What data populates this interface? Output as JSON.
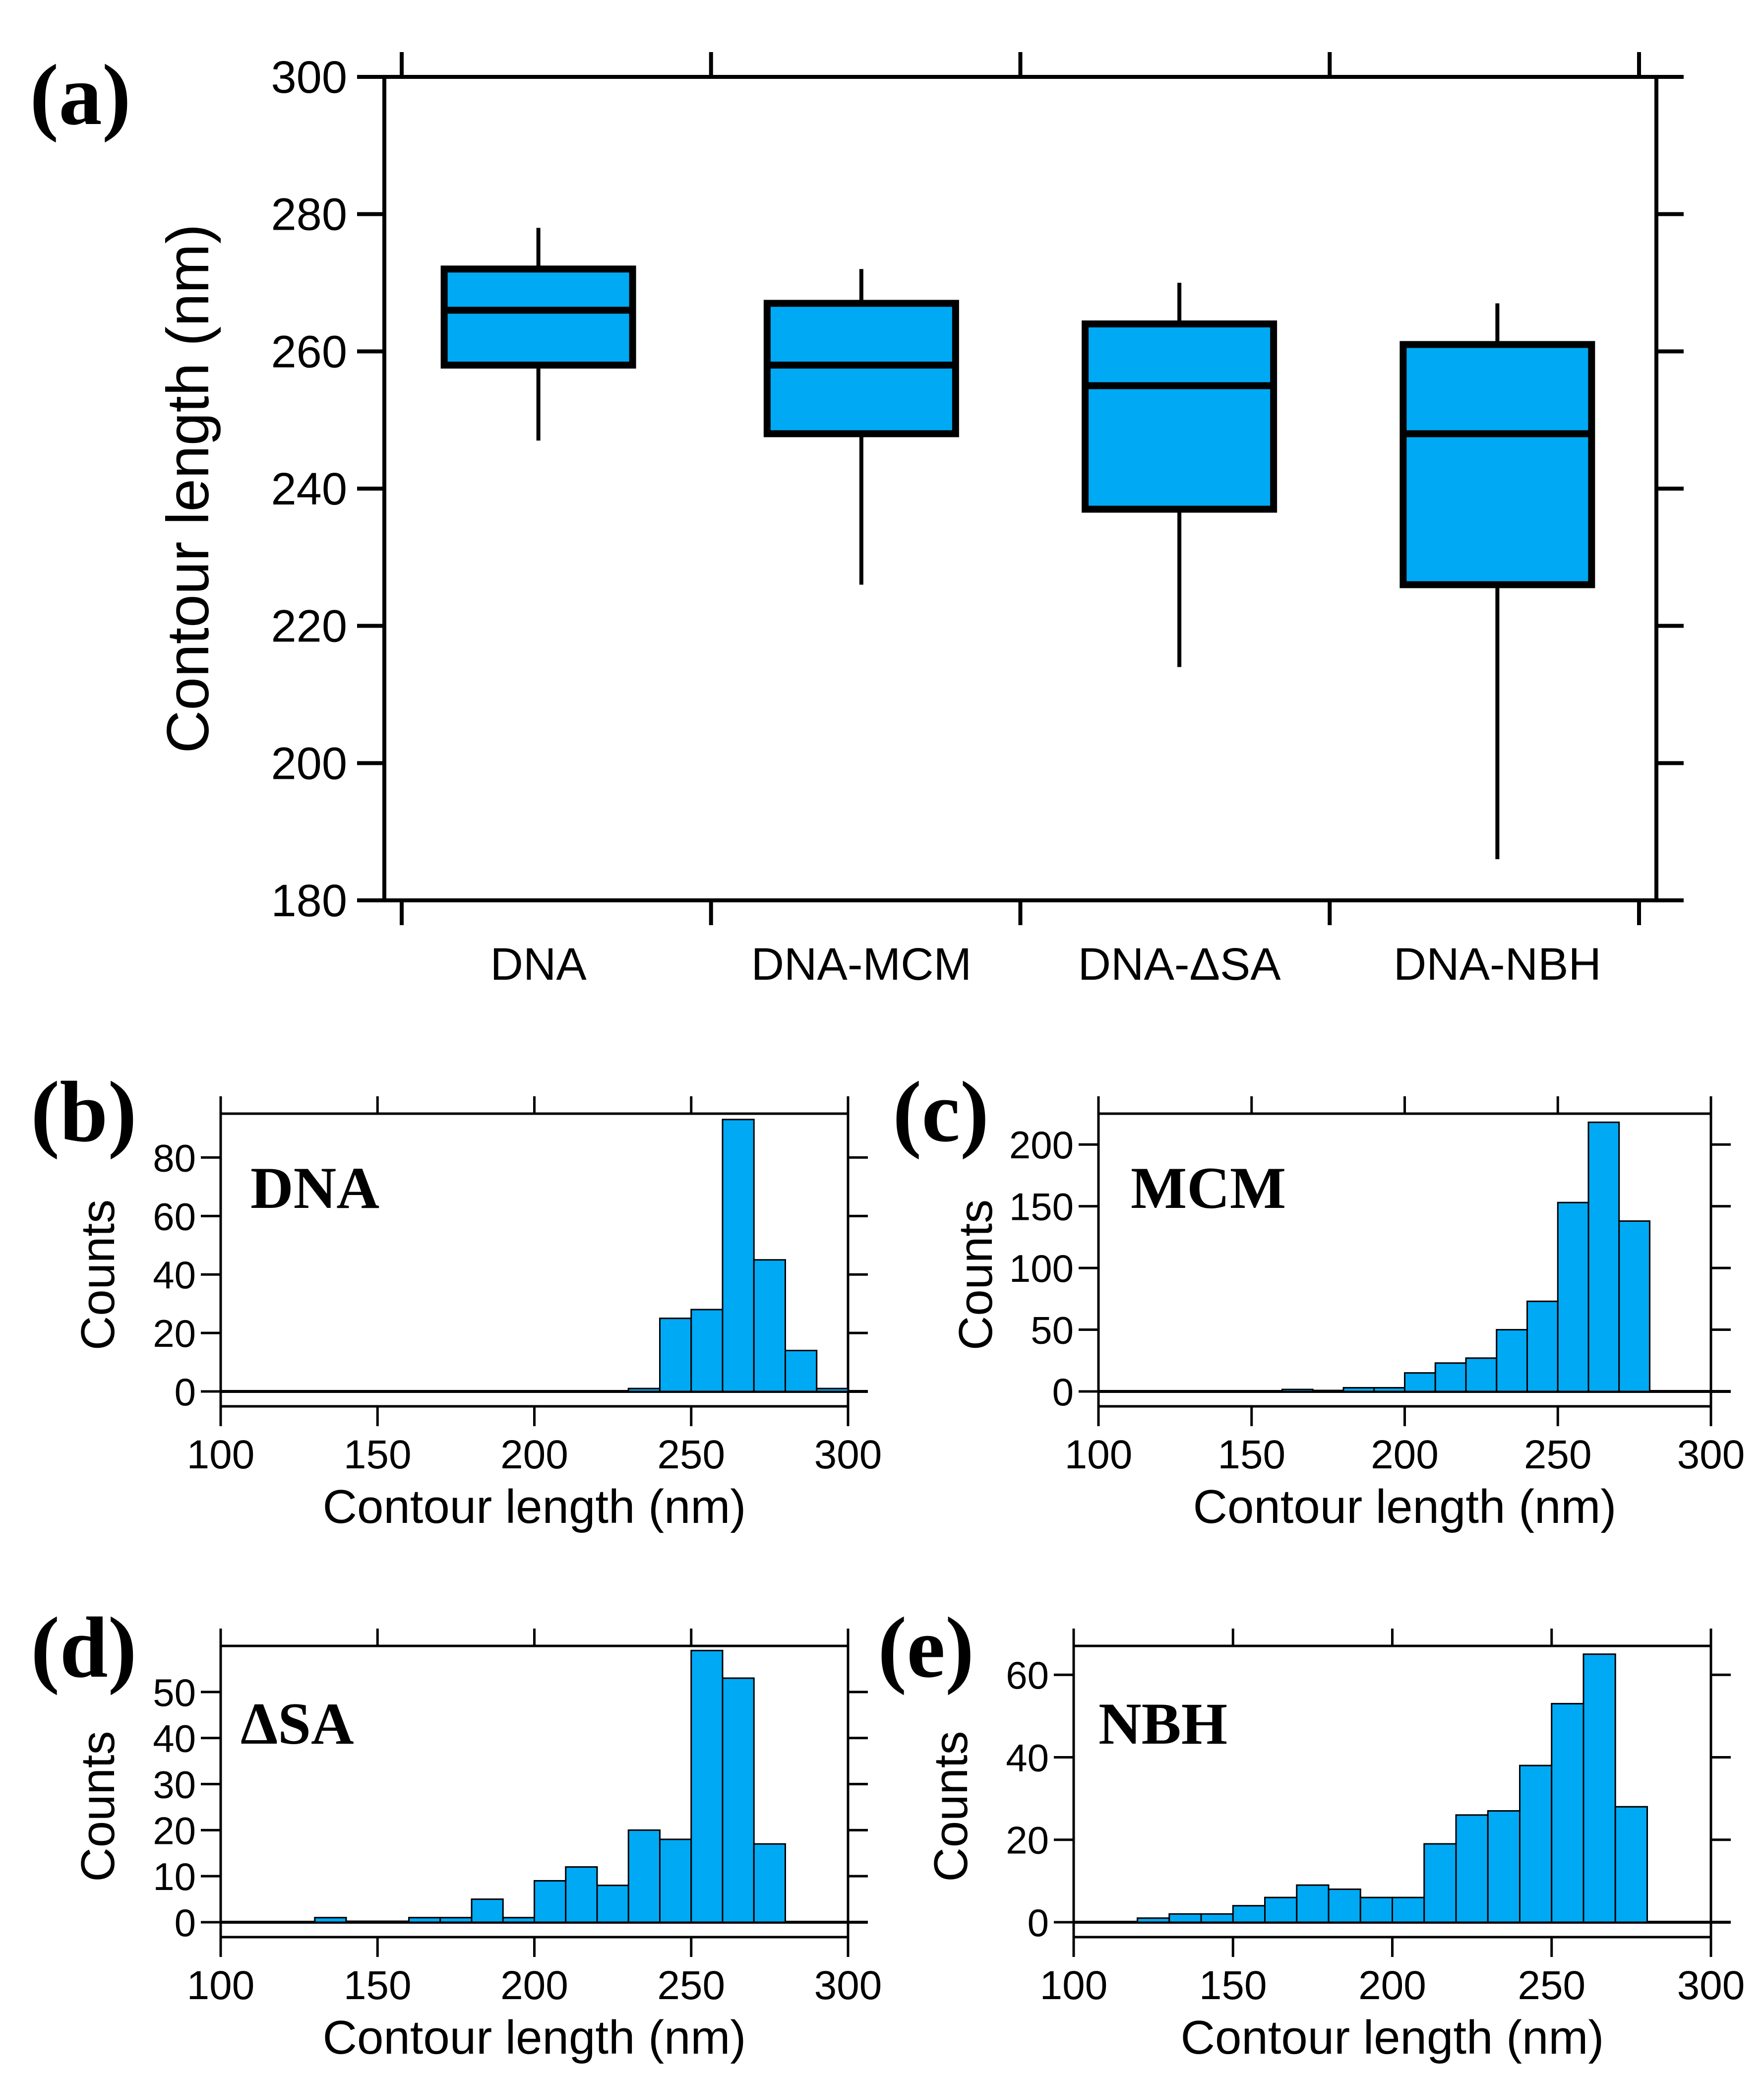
{
  "figure": {
    "fill_color": "#00a9f4",
    "stroke_color": "#000000"
  },
  "chart_data": [
    {
      "id": "a",
      "type": "box",
      "panel_label": "(a)",
      "title": "",
      "xlabel": "",
      "ylabel": "Contour length (nm)",
      "ylim": [
        180,
        300
      ],
      "yticks": [
        "180",
        "200",
        "220",
        "240",
        "260",
        "280",
        "300"
      ],
      "categories": [
        "DNA",
        "DNA-MCM",
        "DNA-ΔSA",
        "DNA-NBH"
      ],
      "boxes": [
        {
          "name": "DNA",
          "whisker_low": 247,
          "q1": 258,
          "median": 266,
          "q3": 272,
          "whisker_high": 278
        },
        {
          "name": "DNA-MCM",
          "whisker_low": 226,
          "q1": 248,
          "median": 258,
          "q3": 267,
          "whisker_high": 272
        },
        {
          "name": "DNA-ΔSA",
          "whisker_low": 214,
          "q1": 237,
          "median": 255,
          "q3": 264,
          "whisker_high": 270
        },
        {
          "name": "DNA-NBH",
          "whisker_low": 186,
          "q1": 226,
          "median": 248,
          "q3": 261,
          "whisker_high": 267
        }
      ]
    },
    {
      "id": "b",
      "type": "bar",
      "panel_label": "(b)",
      "annotation": "DNA",
      "xlabel": "Contour length (nm)",
      "ylabel": "Counts",
      "xlim": [
        100,
        300
      ],
      "ylim": [
        0,
        95
      ],
      "xticks": [
        "100",
        "150",
        "200",
        "250",
        "300"
      ],
      "yticks": [
        "0",
        "20",
        "40",
        "60",
        "80"
      ],
      "bin_width": 10,
      "bins": [
        230,
        240,
        250,
        260,
        270,
        280,
        290
      ],
      "values": [
        1,
        25,
        28,
        93,
        45,
        14,
        1
      ]
    },
    {
      "id": "c",
      "type": "bar",
      "panel_label": "(c)",
      "annotation": "MCM",
      "xlabel": "Contour length (nm)",
      "ylabel": "Counts",
      "xlim": [
        100,
        300
      ],
      "ylim": [
        0,
        225
      ],
      "xticks": [
        "100",
        "150",
        "200",
        "250",
        "300"
      ],
      "yticks": [
        "0",
        "50",
        "100",
        "150",
        "200"
      ],
      "bin_width": 10,
      "bins": [
        160,
        170,
        180,
        190,
        200,
        210,
        220,
        230,
        240,
        250,
        260,
        270
      ],
      "values": [
        1,
        0,
        3,
        3,
        15,
        23,
        27,
        50,
        73,
        153,
        218,
        138
      ]
    },
    {
      "id": "d",
      "type": "bar",
      "panel_label": "(d)",
      "annotation": "ΔSA",
      "xlabel": "Contour length (nm)",
      "ylabel": "Counts",
      "xlim": [
        100,
        300
      ],
      "ylim": [
        0,
        60
      ],
      "xticks": [
        "100",
        "150",
        "200",
        "250",
        "300"
      ],
      "yticks": [
        "0",
        "10",
        "20",
        "30",
        "40",
        "50"
      ],
      "bin_width": 10,
      "bins": [
        130,
        140,
        150,
        160,
        170,
        180,
        190,
        200,
        210,
        220,
        230,
        240,
        250,
        260,
        270
      ],
      "values": [
        1,
        0,
        0,
        1,
        1,
        5,
        1,
        9,
        12,
        8,
        20,
        18,
        59,
        53,
        17
      ]
    },
    {
      "id": "e",
      "type": "bar",
      "panel_label": "(e)",
      "annotation": "NBH",
      "xlabel": "Contour length (nm)",
      "ylabel": "Counts",
      "xlim": [
        100,
        300
      ],
      "ylim": [
        0,
        67
      ],
      "xticks": [
        "100",
        "150",
        "200",
        "250",
        "300"
      ],
      "yticks": [
        "0",
        "20",
        "40",
        "60"
      ],
      "bin_width": 10,
      "bins": [
        120,
        130,
        140,
        150,
        160,
        170,
        180,
        190,
        200,
        210,
        220,
        230,
        240,
        250,
        260,
        270
      ],
      "values": [
        1,
        2,
        2,
        4,
        6,
        9,
        8,
        6,
        6,
        19,
        26,
        27,
        38,
        53,
        65,
        28
      ]
    }
  ]
}
